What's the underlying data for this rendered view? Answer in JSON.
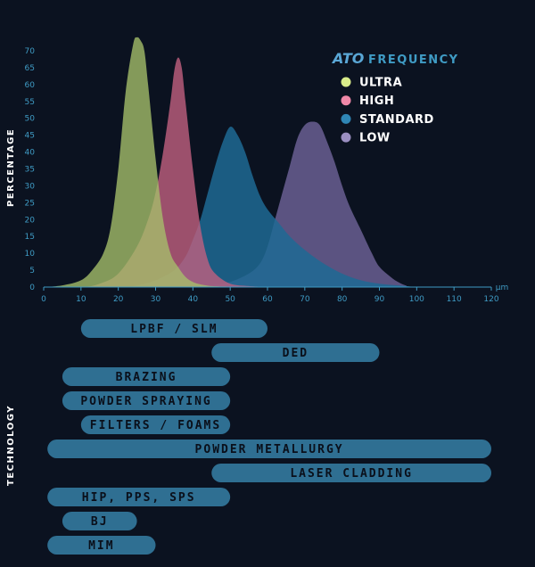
{
  "chart_data": [
    {
      "type": "area",
      "ylabel": "PERCENTAGE",
      "x_unit": "µm",
      "xlim": [
        0,
        120
      ],
      "ylim": [
        0,
        70
      ],
      "x_ticks": [
        "0",
        "10",
        "20",
        "30",
        "40",
        "50",
        "60",
        "70",
        "80",
        "90",
        "100",
        "110",
        "120"
      ],
      "y_ticks": [
        "0",
        "5",
        "10",
        "15",
        "20",
        "25",
        "30",
        "35",
        "40",
        "45",
        "50",
        "55",
        "60",
        "65",
        "70"
      ],
      "legend": {
        "brand": "ATO",
        "title": "FREQUENCY",
        "placement": "top-right"
      },
      "series": [
        {
          "name": "ULTRA",
          "color": "#d9ec8a",
          "fill": "#a7c06a",
          "x": [
            0,
            5,
            10,
            13,
            16,
            18,
            20,
            22,
            24,
            25,
            26,
            27,
            28,
            30,
            32,
            34,
            36,
            38,
            40,
            42,
            45,
            50,
            55,
            60
          ],
          "y": [
            0,
            0.5,
            2,
            5,
            10,
            18,
            35,
            58,
            72,
            74,
            73,
            70,
            60,
            38,
            20,
            10,
            6,
            3,
            1.5,
            0.8,
            0.3,
            0.1,
            0,
            0
          ]
        },
        {
          "name": "HIGH",
          "color": "#f088a8",
          "fill": "#c0607f",
          "x": [
            0,
            10,
            15,
            20,
            25,
            28,
            30,
            32,
            34,
            35,
            36,
            37,
            38,
            40,
            42,
            44,
            46,
            50,
            55,
            60
          ],
          "y": [
            0,
            0,
            1,
            4,
            12,
            20,
            28,
            40,
            55,
            64,
            68,
            65,
            55,
            35,
            18,
            8,
            4,
            1,
            0.3,
            0
          ],
          "fill_to_next": true
        },
        {
          "name": "STANDARD",
          "color": "#2f86b5",
          "fill": "#1e6a94",
          "x": [
            0,
            20,
            25,
            30,
            35,
            38,
            40,
            42,
            44,
            46,
            48,
            50,
            52,
            54,
            56,
            58,
            60,
            63,
            66,
            70,
            75,
            80,
            85,
            90,
            95,
            100
          ],
          "y": [
            0,
            0,
            0.5,
            2,
            5,
            9,
            14,
            20,
            28,
            36,
            43,
            47.5,
            45,
            40,
            33,
            27,
            23,
            19,
            15,
            11,
            7,
            4,
            2,
            1,
            0.5,
            0
          ]
        },
        {
          "name": "LOW",
          "color": "#9b8fc2",
          "fill": "#6a5f93",
          "x": [
            0,
            40,
            45,
            50,
            55,
            58,
            60,
            62,
            64,
            66,
            68,
            70,
            72,
            74,
            76,
            78,
            80,
            82,
            85,
            88,
            90,
            93,
            95,
            97,
            100,
            120
          ],
          "y": [
            0,
            0,
            0.5,
            1.5,
            4,
            7,
            12,
            20,
            28,
            36,
            44,
            48,
            49,
            48,
            43,
            37,
            30,
            24,
            17,
            10,
            6,
            3,
            1.5,
            0.5,
            0,
            0
          ]
        }
      ]
    },
    {
      "type": "bar",
      "ylabel": "TECHNOLOGY",
      "orientation": "horizontal",
      "xlim": [
        0,
        120
      ],
      "bars": [
        {
          "label": "LPBF / SLM",
          "start": 10,
          "end": 60
        },
        {
          "label": "DED",
          "start": 45,
          "end": 90
        },
        {
          "label": "BRAZING",
          "start": 5,
          "end": 50
        },
        {
          "label": "POWDER SPRAYING",
          "start": 5,
          "end": 50
        },
        {
          "label": "FILTERS / FOAMS",
          "start": 10,
          "end": 50
        },
        {
          "label": "POWDER METALLURGY",
          "start": 1,
          "end": 120
        },
        {
          "label": "LASER CLADDING",
          "start": 45,
          "end": 120
        },
        {
          "label": "HIP, PPS, SPS",
          "start": 1,
          "end": 50
        },
        {
          "label": "BJ",
          "start": 5,
          "end": 25
        },
        {
          "label": "MIM",
          "start": 1,
          "end": 30
        }
      ],
      "bar_color": "#2f6f92"
    }
  ]
}
